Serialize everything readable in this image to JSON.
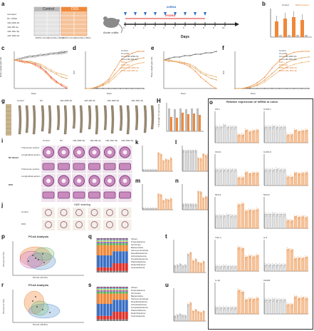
{
  "panel_letters": [
    "a",
    "b",
    "c",
    "d",
    "e",
    "f",
    "g",
    "H",
    "i",
    "j",
    "k",
    "l",
    "m",
    "n",
    "o",
    "p",
    "q",
    "r",
    "s",
    "t",
    "u"
  ],
  "colors": {
    "control": "#bdbdbd",
    "dss": "#f0883a",
    "dss_light": "#f6c39a",
    "mouse_fill": "#8a8a8a",
    "grid": "#cccccc",
    "he_tissue": "#c98bbd",
    "he_dark": "#7a3e79"
  },
  "panel_a": {
    "group_control": "Control",
    "group_dss": "DSS",
    "row_labels": [
      "untreated",
      "NC mRNA",
      "miR-200b-5p",
      "miR-29b-3p",
      "miR-181c-5p",
      "miR-181b-5p"
    ],
    "col_labels": [
      "mRNA mimics",
      "Scramble mRNA",
      "mRNA mimics",
      "Scramble mRNA"
    ],
    "top_label": "miRNA",
    "dss_label": "2%DSS",
    "left_label": "Acute colitis",
    "axis_title": "Days",
    "day_ticks": [
      "0",
      "1",
      "2",
      "3",
      "4",
      "5",
      "6",
      "7",
      "8",
      "9",
      "10"
    ]
  },
  "panel_b": {
    "legend": [
      "Control",
      "miRNA treated"
    ]
  },
  "chart_c": {
    "xlabel": "Days",
    "ylabel": "Body weight gain (%)",
    "legend": [
      "Control",
      "Con+NC",
      "Con+miR-200b-5p",
      "Con+miR-29b-3p",
      "DSS",
      "DSS+NC",
      "DSS+miR-200b-5p",
      "DSS+miR-29b-3p"
    ]
  },
  "chart_d": {
    "xlabel": "Days",
    "ylabel": "DAI"
  },
  "chart_e": {
    "xlabel": "Days",
    "ylabel": "Body weight gain (%)"
  },
  "chart_f": {
    "xlabel": "Days",
    "ylabel": "DAI",
    "legend": [
      "Control",
      "Con+NC",
      "Con+miR-181b-5p",
      "Con+miR-181c-5p",
      "DSS",
      "DSS+NC",
      "DSS+miR-181b-5p",
      "DSS+miR-181c-5p"
    ]
  },
  "panel_g": {
    "col_labels": [
      "Control",
      "NC",
      "miR-200b-5p",
      "miR-29b-3p",
      "miR-181b-5p",
      "miR-181c-5p"
    ],
    "row_labels": [
      "Control",
      "DSS"
    ]
  },
  "panel_H": {
    "ylabel": "The length of colon (cm)"
  },
  "panel_i": {
    "col_labels": [
      "Control",
      "NC",
      "miR-200b-5p",
      "miR-29b-3p",
      "miR-181c-5p",
      "miR-181b-5p"
    ],
    "row_labels": [
      "Transverse section",
      "Longitudinal section",
      "Transverse section",
      "Longitudinal section"
    ],
    "group_labels": [
      "NC Model",
      "DSS"
    ],
    "stain_label": "H&E staining"
  },
  "panel_j": {
    "row_labels": [
      "Control",
      "DSS"
    ]
  },
  "panel_o": {
    "title": "Relative expression of mRNA in colon",
    "genes": [
      "ZO-1",
      "CLDN-1",
      "OCLN",
      "CLDN-5",
      "MUC1",
      "MUC2",
      "TNF-α",
      "IL-6",
      "IL-1β",
      "CD206"
    ]
  },
  "panel_p": {
    "title": "PCoA Analysis",
    "xlabel": "PCoA1 (20.1%)",
    "ylabel": "PCoA2 (16.7%)"
  },
  "panel_r": {
    "title": "PCoA Analysis",
    "xlabel": "PCoA1 (28.9%)",
    "ylabel": "PCoA2 (17.3%)"
  },
  "panel_q": {
    "legend": [
      "Others",
      "Proteobacteria",
      "Firmicutes",
      "Bacteroidota",
      "Verrucomicrobiota",
      "Desulfobacterota",
      "Actinobacteriota",
      "Campilobacterota",
      "Patescibacteria",
      "Deferribacteres",
      "Cyanobacteria"
    ]
  },
  "panel_s": {
    "legend": [
      "Others",
      "Proteobacteria",
      "Firmicutes",
      "Bacteroidota",
      "Verrucomicrobiota",
      "Desulfobacterota",
      "Actinobacteriota",
      "Campilobacterota",
      "Patescibacteria",
      "Deferribacteres",
      "Cyanobacteria"
    ]
  },
  "chart_data": [
    {
      "type": "line",
      "panel": "c",
      "x": [
        0,
        1,
        2,
        3,
        4,
        5,
        6,
        7,
        8,
        9,
        10
      ],
      "series": [
        {
          "name": "Control",
          "values": [
            0,
            1,
            2,
            2,
            3,
            3,
            4,
            4,
            5,
            5,
            6
          ]
        },
        {
          "name": "Con+NC",
          "values": [
            0,
            1,
            1,
            2,
            2,
            3,
            3,
            4,
            4,
            5,
            5
          ]
        },
        {
          "name": "Con+miR-200b-5p",
          "values": [
            0,
            1,
            2,
            3,
            3,
            4,
            4,
            5,
            5,
            6,
            6
          ]
        },
        {
          "name": "Con+miR-29b-3p",
          "values": [
            0,
            0,
            1,
            2,
            2,
            3,
            3,
            4,
            4,
            4,
            5
          ]
        },
        {
          "name": "DSS",
          "values": [
            0,
            -1,
            -1,
            -2,
            -3,
            -5,
            -8,
            -12,
            -15,
            -18,
            -20
          ]
        },
        {
          "name": "DSS+NC",
          "values": [
            0,
            -1,
            -2,
            -2,
            -4,
            -6,
            -9,
            -13,
            -16,
            -17,
            -19
          ]
        },
        {
          "name": "DSS+miR-200b-5p",
          "values": [
            0,
            0,
            -1,
            -1,
            -2,
            -3,
            -5,
            -7,
            -9,
            -10,
            -11
          ]
        },
        {
          "name": "DSS+miR-29b-3p",
          "values": [
            0,
            0,
            -1,
            -1,
            -2,
            -4,
            -6,
            -8,
            -10,
            -12,
            -13
          ]
        }
      ]
    },
    {
      "type": "line",
      "panel": "d",
      "x": [
        0,
        1,
        2,
        3,
        4,
        5,
        6,
        7,
        8,
        9,
        10
      ],
      "series": [
        {
          "name": "Control",
          "values": [
            0,
            0,
            0,
            0,
            0,
            0,
            0,
            0,
            0,
            0,
            0
          ]
        },
        {
          "name": "DSS",
          "values": [
            0,
            0,
            0.2,
            0.5,
            1,
            2,
            3,
            3.5,
            3.8,
            4,
            4
          ]
        },
        {
          "name": "DSS+miR-200b-5p",
          "values": [
            0,
            0,
            0.1,
            0.3,
            0.6,
            1.2,
            1.8,
            2.2,
            2.5,
            2.7,
            2.8
          ]
        },
        {
          "name": "DSS+miR-29b-3p",
          "values": [
            0,
            0,
            0.1,
            0.4,
            0.8,
            1.5,
            2.2,
            2.8,
            3,
            3.2,
            3.3
          ]
        }
      ]
    },
    {
      "type": "line",
      "panel": "e",
      "x": [
        0,
        1,
        2,
        3,
        4,
        5,
        6,
        7,
        8,
        9,
        10
      ],
      "series": [
        {
          "name": "Control",
          "values": [
            0,
            1,
            2,
            2,
            3,
            3,
            4,
            4,
            5,
            5,
            6
          ]
        },
        {
          "name": "DSS",
          "values": [
            0,
            -1,
            -1,
            -2,
            -3,
            -5,
            -8,
            -12,
            -15,
            -18,
            -20
          ]
        },
        {
          "name": "DSS+miR-181b-5p",
          "values": [
            0,
            0,
            -1,
            -1,
            -2,
            -3,
            -5,
            -8,
            -10,
            -11,
            -12
          ]
        },
        {
          "name": "DSS+miR-181c-5p",
          "values": [
            0,
            0,
            -1,
            -2,
            -2,
            -4,
            -6,
            -9,
            -11,
            -13,
            -14
          ]
        }
      ]
    },
    {
      "type": "line",
      "panel": "f",
      "x": [
        0,
        1,
        2,
        3,
        4,
        5,
        6,
        7,
        8,
        9,
        10
      ],
      "series": [
        {
          "name": "Control",
          "values": [
            0,
            0,
            0,
            0,
            0,
            0,
            0,
            0,
            0,
            0,
            0
          ]
        },
        {
          "name": "DSS",
          "values": [
            0,
            0,
            0.2,
            0.6,
            1.2,
            2.2,
            3,
            3.6,
            3.9,
            4,
            4
          ]
        },
        {
          "name": "DSS+miR-181b-5p",
          "values": [
            0,
            0,
            0.1,
            0.3,
            0.7,
            1.3,
            1.9,
            2.3,
            2.6,
            2.8,
            2.9
          ]
        },
        {
          "name": "DSS+miR-181c-5p",
          "values": [
            0,
            0,
            0.1,
            0.4,
            0.9,
            1.6,
            2.3,
            2.8,
            3.1,
            3.3,
            3.4
          ]
        }
      ]
    }
  ]
}
